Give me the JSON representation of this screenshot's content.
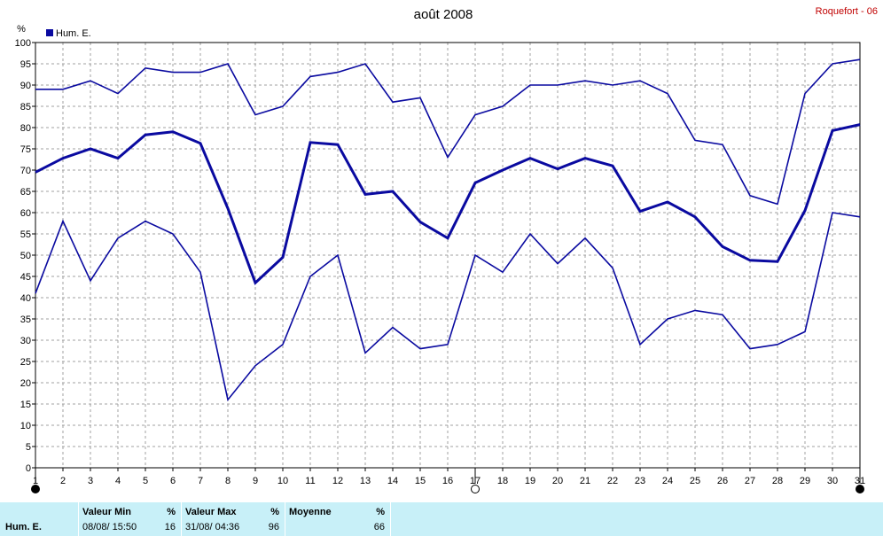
{
  "chart_data": {
    "type": "line",
    "title": "août 2008",
    "station": "Roquefort - 06",
    "ylabel": "%",
    "ylim": [
      0,
      100
    ],
    "yticks": [
      0,
      5,
      10,
      15,
      20,
      25,
      30,
      35,
      40,
      45,
      50,
      55,
      60,
      65,
      70,
      75,
      80,
      85,
      90,
      95,
      100
    ],
    "x": [
      1,
      2,
      3,
      4,
      5,
      6,
      7,
      8,
      9,
      10,
      11,
      12,
      13,
      14,
      15,
      16,
      17,
      18,
      19,
      20,
      21,
      22,
      23,
      24,
      25,
      26,
      27,
      28,
      29,
      30,
      31
    ],
    "xlim": [
      1,
      31
    ],
    "grid": true,
    "legend": "top-left",
    "legend_label": "Hum. E.",
    "series": [
      {
        "role": "max",
        "values": [
          89,
          89,
          91,
          88,
          94,
          93,
          93,
          95,
          83,
          85,
          92,
          93,
          95,
          86,
          87,
          73,
          83,
          85,
          90,
          90,
          91,
          90,
          91,
          88,
          77,
          76,
          64,
          62,
          88,
          95,
          96
        ]
      },
      {
        "role": "mean",
        "values": [
          69.5,
          72.8,
          75,
          72.8,
          78.3,
          79,
          76.3,
          61,
          43.5,
          49.5,
          76.5,
          76,
          64.3,
          65,
          57.8,
          54,
          67,
          70,
          72.8,
          70.3,
          72.8,
          71,
          60.3,
          62.5,
          59,
          52,
          48.8,
          48.5,
          60.5,
          79.3,
          80.7
        ]
      },
      {
        "role": "min",
        "values": [
          41,
          58,
          44,
          54,
          58,
          55,
          46,
          16,
          24,
          29,
          45,
          50,
          27,
          33,
          28,
          29,
          50,
          46,
          55,
          48,
          54,
          47,
          29,
          35,
          37,
          36,
          28,
          29,
          32,
          60,
          59
        ]
      }
    ],
    "markers": [
      {
        "x": 1,
        "style": "filled"
      },
      {
        "x": 17,
        "style": "open"
      },
      {
        "x": 31,
        "style": "filled"
      }
    ],
    "colors": {
      "line": "#0a0aa0",
      "grid": "#a0a0a0",
      "panel": "#c8f0f8",
      "station": "#c00000"
    }
  },
  "summary": {
    "series_label": "Hum. E.",
    "min_header": "Valeur Min",
    "min_unit": "%",
    "min_time": "08/08/  15:50",
    "min_value": "16",
    "max_header": "Valeur Max",
    "max_unit": "%",
    "max_time": "31/08/  04:36",
    "max_value": "96",
    "mean_header": "Moyenne",
    "mean_unit": "%",
    "mean_value": "66"
  }
}
